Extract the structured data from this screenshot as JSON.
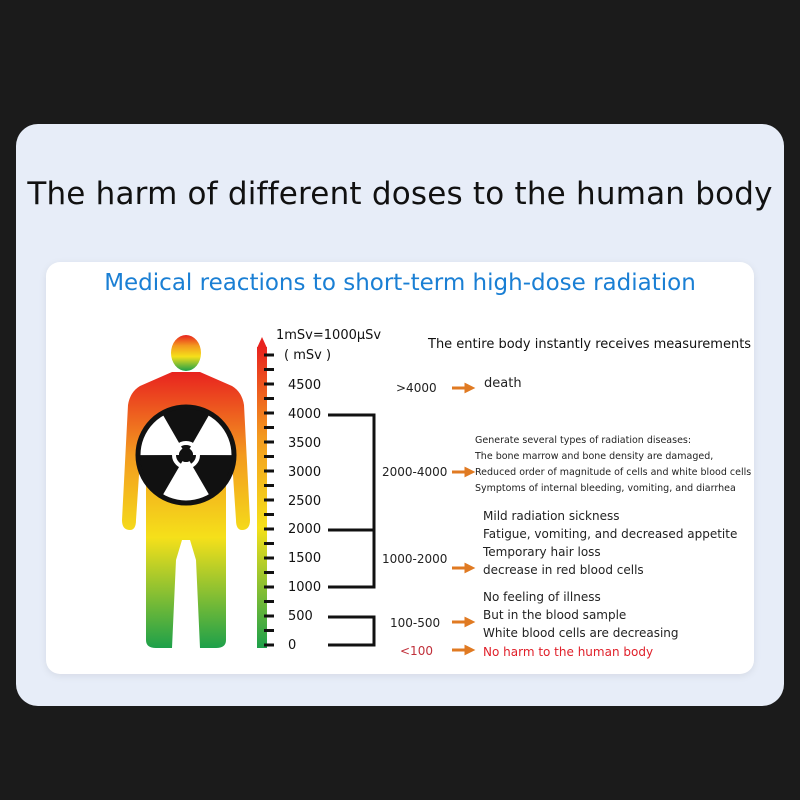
{
  "header": {
    "title": "The harm of different doses to the human body"
  },
  "panel": {
    "subtitle": "Medical reactions to short-term high-dose radiation",
    "unit_note": "1mSv=1000μSv",
    "unit": "( mSv )",
    "measurements_heading": "The entire body instantly receives measurements",
    "scale_labels": [
      "4500",
      "4000",
      "3500",
      "3000",
      "2500",
      "2000",
      "1500",
      "1000",
      "500",
      "0"
    ],
    "ranges": [
      {
        "label": ">4000",
        "effects": [
          "death"
        ]
      },
      {
        "label": "2000-4000",
        "effects": [
          "Generate several types of radiation diseases:",
          "The bone marrow and bone density are damaged,",
          "Reduced order of magnitude of cells and white blood cells",
          "Symptoms of internal bleeding, vomiting, and diarrhea"
        ]
      },
      {
        "label": "1000-2000",
        "effects": [
          "Mild radiation sickness",
          "Fatigue, vomiting, and decreased appetite",
          "Temporary hair loss",
          "decrease in red blood cells"
        ]
      },
      {
        "label": "100-500",
        "effects": [
          "No feeling of illness",
          "But in the blood sample",
          "White blood cells are decreasing"
        ]
      },
      {
        "label": "<100",
        "effects": [
          "No harm to the human body"
        ]
      }
    ],
    "icons": [
      "human-figure-icon",
      "radiation-symbol-icon",
      "arrow-right-icon"
    ],
    "colors": {
      "subtitle": "#1a7fd4",
      "arrow": "#e07a22",
      "safe_text": "#e0202a",
      "gradient_top": "#e8231f",
      "gradient_mid": "#f5e01a",
      "gradient_bottom": "#1da04a"
    }
  }
}
